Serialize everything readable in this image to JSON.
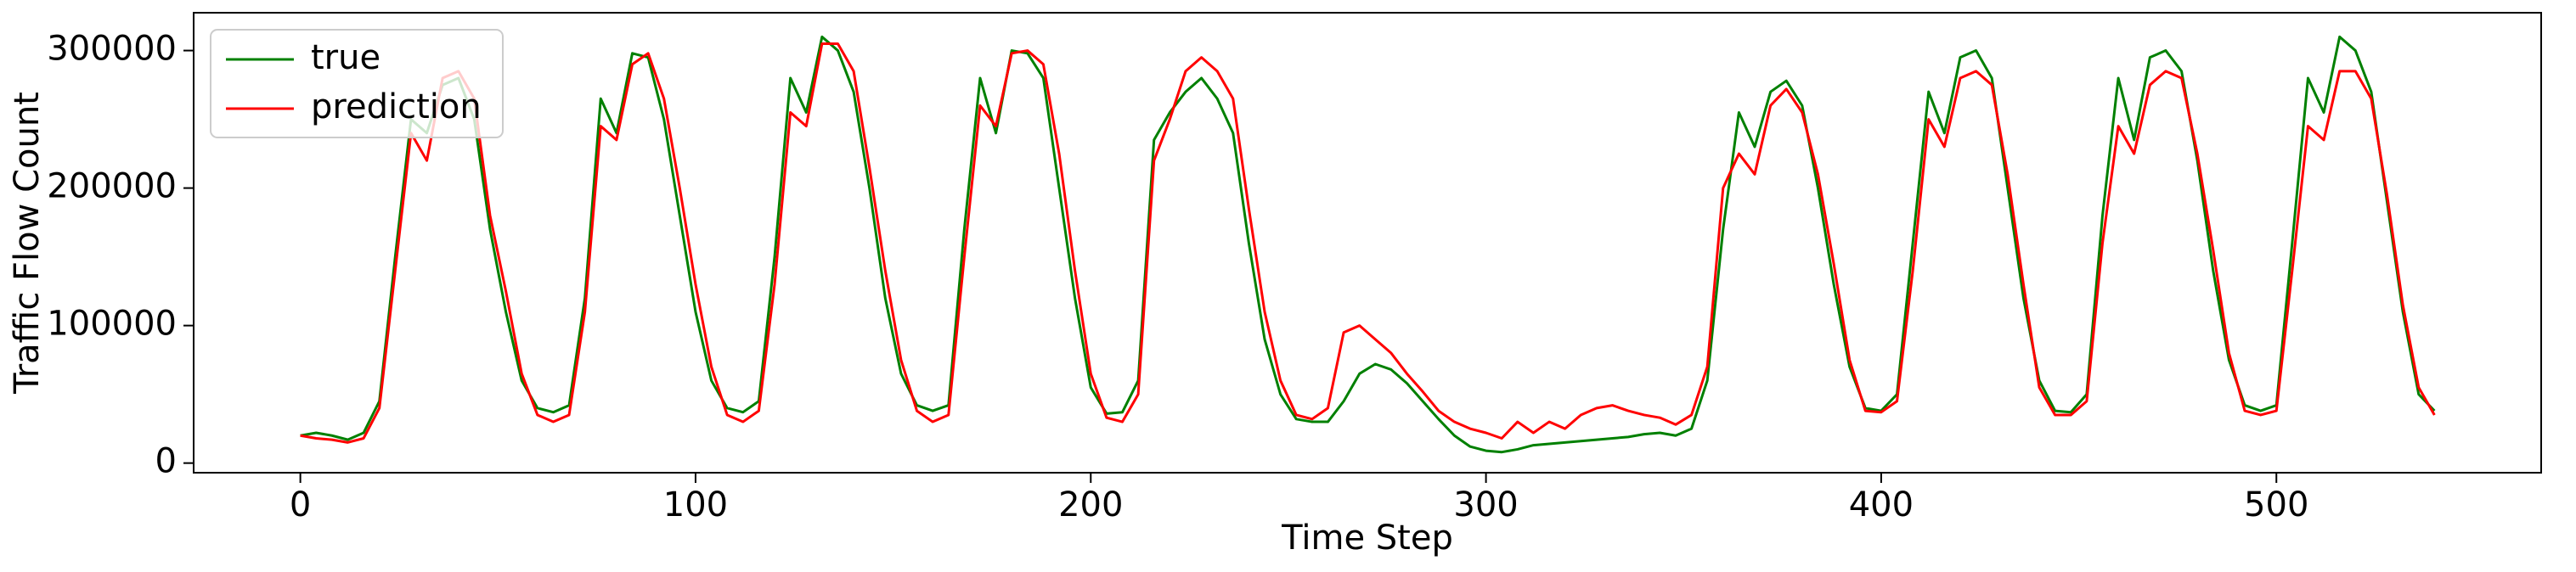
{
  "chart_data": {
    "type": "line",
    "x_label": "Time Step",
    "y_label": "Traffic Flow Count",
    "x": [
      0,
      4,
      8,
      12,
      16,
      20,
      24,
      28,
      32,
      36,
      40,
      44,
      48,
      52,
      56,
      60,
      64,
      68,
      72,
      76,
      80,
      84,
      88,
      92,
      96,
      100,
      104,
      108,
      112,
      116,
      120,
      124,
      128,
      132,
      136,
      140,
      144,
      148,
      152,
      156,
      160,
      164,
      168,
      172,
      176,
      180,
      184,
      188,
      192,
      196,
      200,
      204,
      208,
      212,
      216,
      220,
      224,
      228,
      232,
      236,
      240,
      244,
      248,
      252,
      256,
      260,
      264,
      268,
      272,
      276,
      280,
      284,
      288,
      292,
      296,
      300,
      304,
      308,
      312,
      316,
      320,
      324,
      328,
      332,
      336,
      340,
      344,
      348,
      352,
      356,
      360,
      364,
      368,
      372,
      376,
      380,
      384,
      388,
      392,
      396,
      400,
      404,
      408,
      412,
      416,
      420,
      424,
      428,
      432,
      436,
      440,
      444,
      448,
      452,
      456,
      460,
      464,
      468,
      472,
      476,
      480,
      484,
      488,
      492,
      496,
      500,
      504,
      508,
      512,
      516,
      520,
      524,
      528,
      532,
      536,
      540
    ],
    "series": [
      {
        "name": "true",
        "color": "#008000",
        "values": [
          20000,
          22000,
          20000,
          17000,
          22000,
          45000,
          150000,
          250000,
          240000,
          275000,
          280000,
          250000,
          170000,
          110000,
          60000,
          40000,
          37000,
          42000,
          120000,
          265000,
          240000,
          298000,
          295000,
          250000,
          180000,
          110000,
          60000,
          40000,
          37000,
          45000,
          150000,
          280000,
          255000,
          310000,
          300000,
          270000,
          200000,
          120000,
          65000,
          42000,
          38000,
          42000,
          170000,
          280000,
          240000,
          300000,
          298000,
          280000,
          200000,
          120000,
          55000,
          36000,
          37000,
          60000,
          235000,
          255000,
          270000,
          280000,
          265000,
          240000,
          160000,
          90000,
          50000,
          32000,
          30000,
          30000,
          45000,
          65000,
          72000,
          68000,
          58000,
          45000,
          32000,
          20000,
          12000,
          9000,
          8000,
          10000,
          13000,
          14000,
          15000,
          16000,
          17000,
          18000,
          19000,
          21000,
          22000,
          20000,
          25000,
          60000,
          170000,
          255000,
          230000,
          270000,
          278000,
          260000,
          200000,
          130000,
          70000,
          40000,
          38000,
          50000,
          160000,
          270000,
          240000,
          295000,
          300000,
          280000,
          200000,
          120000,
          60000,
          38000,
          37000,
          50000,
          180000,
          280000,
          235000,
          295000,
          300000,
          285000,
          220000,
          140000,
          75000,
          42000,
          38000,
          42000,
          160000,
          280000,
          255000,
          310000,
          300000,
          270000,
          190000,
          110000,
          50000,
          38000
        ]
      },
      {
        "name": "prediction",
        "color": "#ff0000",
        "values": [
          20000,
          18000,
          17000,
          15000,
          18000,
          40000,
          140000,
          240000,
          220000,
          280000,
          285000,
          265000,
          180000,
          125000,
          65000,
          35000,
          30000,
          35000,
          110000,
          245000,
          235000,
          290000,
          298000,
          265000,
          200000,
          130000,
          70000,
          35000,
          30000,
          38000,
          130000,
          255000,
          245000,
          305000,
          305000,
          285000,
          215000,
          140000,
          75000,
          38000,
          30000,
          35000,
          150000,
          260000,
          245000,
          298000,
          300000,
          290000,
          225000,
          140000,
          65000,
          33000,
          30000,
          50000,
          220000,
          250000,
          285000,
          295000,
          285000,
          265000,
          185000,
          110000,
          60000,
          35000,
          32000,
          40000,
          95000,
          100000,
          90000,
          80000,
          65000,
          52000,
          38000,
          30000,
          25000,
          22000,
          18000,
          30000,
          22000,
          30000,
          25000,
          35000,
          40000,
          42000,
          38000,
          35000,
          33000,
          28000,
          35000,
          70000,
          200000,
          225000,
          210000,
          260000,
          272000,
          255000,
          210000,
          145000,
          75000,
          38000,
          37000,
          45000,
          140000,
          250000,
          230000,
          280000,
          285000,
          275000,
          210000,
          130000,
          55000,
          35000,
          35000,
          45000,
          160000,
          245000,
          225000,
          275000,
          285000,
          280000,
          225000,
          155000,
          80000,
          38000,
          35000,
          38000,
          140000,
          245000,
          235000,
          285000,
          285000,
          265000,
          195000,
          115000,
          55000,
          35000
        ]
      }
    ],
    "xlim": [
      -27,
      567
    ],
    "ylim": [
      -7000,
      327500
    ],
    "xticks": [
      0,
      100,
      200,
      300,
      400,
      500
    ],
    "yticks": [
      0,
      100000,
      200000,
      300000
    ],
    "legend": "upper left"
  }
}
